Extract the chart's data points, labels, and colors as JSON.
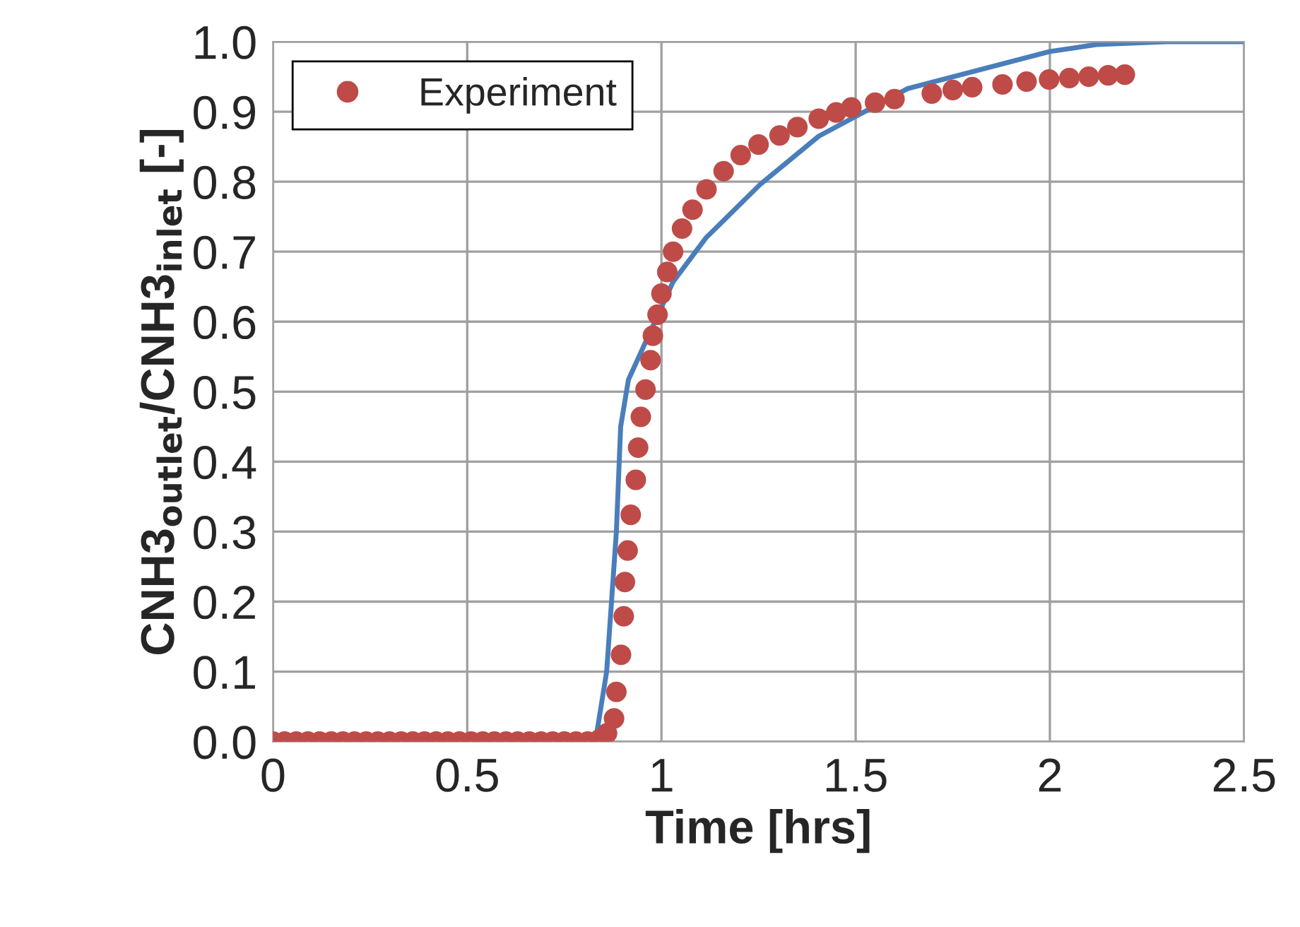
{
  "chart_data": {
    "type": "line",
    "xlabel": "Time [hrs]",
    "ylabel": "CNH3$_{outlet}$/CNH3$_{inlet}$ [-]",
    "xlim": [
      0,
      2.5
    ],
    "xticks": [
      0,
      0.5,
      1,
      1.5,
      2,
      2.5
    ],
    "ylim": [
      0,
      1.0
    ],
    "yticks": [
      {
        "value": 0,
        "label": "0.0"
      },
      {
        "value": 0.1,
        "label": "0.1"
      },
      {
        "value": 0.2,
        "label": "0.2"
      },
      {
        "value": 0.3,
        "label": "0.3"
      },
      {
        "value": 0.4,
        "label": "0.4"
      },
      {
        "value": 0.5,
        "label": "0.5"
      },
      {
        "value": 0.6,
        "label": "0.6"
      },
      {
        "value": 0.7,
        "label": "0.7"
      },
      {
        "value": 0.8,
        "label": "0.8"
      },
      {
        "value": 0.9,
        "label": "0.9"
      },
      {
        "value": 1.0,
        "label": "1.0"
      }
    ],
    "grid": true,
    "legend": "top left",
    "series": [
      {
        "color": "#4a7ebb",
        "marker": "none",
        "x": [
          0,
          0.83,
          0.859,
          0.884,
          0.895,
          0.915,
          1.03,
          1.115,
          1.254,
          1.405,
          1.634,
          2.0,
          2.12,
          2.3,
          2.5
        ],
        "values": [
          0,
          0,
          0.1,
          0.3,
          0.45,
          0.517,
          0.657,
          0.72,
          0.796,
          0.865,
          0.933,
          0.986,
          0.996,
          1.0,
          1.0
        ]
      },
      {
        "type": "scatter",
        "name": "Experiment",
        "color": "#be4b48",
        "marker": "circle",
        "x": [
          0,
          0.03,
          0.06,
          0.09,
          0.12,
          0.15,
          0.18,
          0.21,
          0.24,
          0.27,
          0.3,
          0.33,
          0.36,
          0.39,
          0.42,
          0.45,
          0.48,
          0.51,
          0.54,
          0.57,
          0.6,
          0.63,
          0.66,
          0.69,
          0.72,
          0.75,
          0.78,
          0.81,
          0.84,
          0.86,
          0.878,
          0.884,
          0.896,
          0.903,
          0.906,
          0.913,
          0.921,
          0.934,
          0.94,
          0.947,
          0.959,
          0.972,
          0.978,
          0.99,
          1.0,
          1.015,
          1.03,
          1.053,
          1.08,
          1.116,
          1.16,
          1.204,
          1.25,
          1.304,
          1.35,
          1.405,
          1.45,
          1.489,
          1.55,
          1.6,
          1.696,
          1.75,
          1.8,
          1.878,
          1.94,
          1.998,
          2.05,
          2.1,
          2.15,
          2.193
        ],
        "values": [
          0,
          0,
          0,
          0,
          0,
          0,
          0,
          0,
          0,
          0,
          0,
          0,
          0,
          0,
          0,
          0,
          0,
          0,
          0,
          0,
          0,
          0,
          0,
          0,
          0,
          0,
          0,
          0,
          0.003,
          0.012,
          0.033,
          0.071,
          0.124,
          0.179,
          0.228,
          0.273,
          0.324,
          0.374,
          0.42,
          0.464,
          0.503,
          0.545,
          0.58,
          0.61,
          0.64,
          0.671,
          0.7,
          0.733,
          0.76,
          0.789,
          0.815,
          0.838,
          0.853,
          0.866,
          0.878,
          0.89,
          0.899,
          0.906,
          0.913,
          0.918,
          0.926,
          0.931,
          0.935,
          0.939,
          0.943,
          0.946,
          0.948,
          0.95,
          0.952,
          0.953
        ]
      }
    ]
  }
}
